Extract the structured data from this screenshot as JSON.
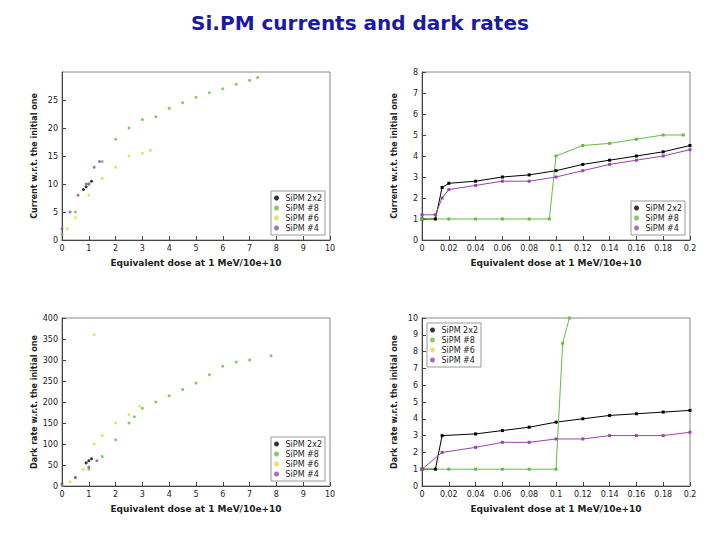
{
  "title": "Si.PM currents and dark rates",
  "chart_data": [
    {
      "type": "scatter",
      "marker": "circle",
      "y_label": "Current w.r.t. the initial one",
      "x_label": "Equivalent dose at 1 MeV/10e+10",
      "xlim": [
        0,
        10
      ],
      "xticks": [
        0,
        1,
        2,
        3,
        4,
        5,
        6,
        7,
        8,
        9,
        10
      ],
      "ylim": [
        0,
        30
      ],
      "yticks": [
        0,
        5,
        10,
        15,
        20,
        25
      ],
      "grid": false,
      "legend": "lower right",
      "series": [
        {
          "name": "SiPM 2x2",
          "color": "#000000",
          "x": [
            0.8,
            0.9,
            1.0,
            1.1
          ],
          "values": [
            9,
            9.5,
            10,
            10.5
          ]
        },
        {
          "name": "SiPM #8",
          "color": "#66bb44",
          "x": [
            0,
            0.5,
            1,
            1.5,
            2,
            2.5,
            3,
            3.5,
            4,
            4.5,
            5,
            5.5,
            6,
            6.5,
            7,
            7.3
          ],
          "values": [
            1,
            5,
            10,
            14,
            18,
            20,
            21.5,
            22,
            23.5,
            24.5,
            25.5,
            26.3,
            27,
            27.8,
            28.5,
            29
          ]
        },
        {
          "name": "SiPM #6",
          "color": "#dddd44",
          "x": [
            0.2,
            0.5,
            1,
            1.5,
            2,
            2.5,
            3,
            3.3
          ],
          "values": [
            2,
            4,
            8,
            11,
            13,
            15,
            15.5,
            16
          ]
        },
        {
          "name": "SiPM #4",
          "color": "#9944aa",
          "x": [
            0,
            0.3,
            0.6,
            0.9,
            1.2,
            1.4
          ],
          "values": [
            2,
            5,
            8,
            10,
            13,
            14
          ]
        }
      ]
    },
    {
      "type": "line",
      "marker": "square",
      "y_label": "Current w.r.t. the initial one",
      "x_label": "Equivalent dose at 1 MeV/10e+10",
      "xlim": [
        0,
        0.2
      ],
      "xticks": [
        0,
        0.02,
        0.04,
        0.06,
        0.08,
        0.1,
        0.12,
        0.14,
        0.16,
        0.18,
        0.2
      ],
      "ylim": [
        0,
        8
      ],
      "yticks": [
        0,
        1,
        2,
        3,
        4,
        5,
        6,
        7,
        8
      ],
      "grid": false,
      "legend": "lower right",
      "series": [
        {
          "name": "SiPM 2x2",
          "color": "#000000",
          "x": [
            0,
            0.01,
            0.015,
            0.02,
            0.04,
            0.06,
            0.08,
            0.1,
            0.12,
            0.14,
            0.16,
            0.18,
            0.2
          ],
          "values": [
            1,
            1,
            2.5,
            2.7,
            2.8,
            3,
            3.1,
            3.3,
            3.6,
            3.8,
            4,
            4.2,
            4.5
          ]
        },
        {
          "name": "SiPM #8",
          "color": "#66bb44",
          "x": [
            0,
            0.02,
            0.04,
            0.06,
            0.08,
            0.095,
            0.1,
            0.12,
            0.14,
            0.16,
            0.18,
            0.195
          ],
          "values": [
            1,
            1,
            1,
            1,
            1,
            1,
            4,
            4.5,
            4.6,
            4.8,
            5,
            5
          ]
        },
        {
          "name": "SiPM #4",
          "color": "#9944aa",
          "x": [
            0,
            0.01,
            0.015,
            0.02,
            0.04,
            0.06,
            0.08,
            0.1,
            0.12,
            0.14,
            0.16,
            0.18,
            0.2
          ],
          "values": [
            1.2,
            1.2,
            2,
            2.4,
            2.6,
            2.8,
            2.8,
            3,
            3.3,
            3.6,
            3.8,
            4,
            4.3
          ]
        }
      ]
    },
    {
      "type": "scatter",
      "marker": "circle",
      "y_label": "Dark rate w.r.t. the initial one",
      "x_label": "Equivalent dose at 1 MeV/10e+10",
      "xlim": [
        0,
        10
      ],
      "xticks": [
        0,
        1,
        2,
        3,
        4,
        5,
        6,
        7,
        8,
        9,
        10
      ],
      "ylim": [
        0,
        400
      ],
      "yticks": [
        0,
        50,
        100,
        150,
        200,
        250,
        300,
        350,
        400
      ],
      "grid": false,
      "legend": "lower right",
      "series": [
        {
          "name": "SiPM 2x2",
          "color": "#000000",
          "x": [
            0.9,
            1.0,
            1.1
          ],
          "values": [
            55,
            60,
            65
          ]
        },
        {
          "name": "SiPM #8",
          "color": "#66bb44",
          "x": [
            0,
            0.5,
            1,
            1.5,
            2,
            2.5,
            2.7,
            3,
            3.5,
            4,
            4.5,
            5,
            5.5,
            6,
            6.5,
            7,
            7.8
          ],
          "values": [
            1,
            20,
            40,
            70,
            110,
            150,
            165,
            185,
            200,
            215,
            230,
            245,
            265,
            285,
            295,
            300,
            310
          ]
        },
        {
          "name": "SiPM #6",
          "color": "#dddd44",
          "x": [
            0.3,
            0.8,
            1.2,
            1.2,
            1.5,
            2,
            2.5,
            2.9
          ],
          "values": [
            10,
            40,
            100,
            360,
            120,
            150,
            170,
            190
          ]
        },
        {
          "name": "SiPM #4",
          "color": "#9944aa",
          "x": [
            0,
            0.5,
            1,
            1.3
          ],
          "values": [
            5,
            20,
            45,
            60
          ]
        }
      ]
    },
    {
      "type": "line",
      "marker": "square",
      "y_label": "Dark rate w.r.t. the initial one",
      "x_label": "Equivalent dose at 1 MeV/10e+10",
      "xlim": [
        0,
        0.2
      ],
      "xticks": [
        0,
        0.02,
        0.04,
        0.06,
        0.08,
        0.1,
        0.12,
        0.14,
        0.16,
        0.18,
        0.2
      ],
      "ylim": [
        0,
        10
      ],
      "yticks": [
        0,
        1,
        2,
        3,
        4,
        5,
        6,
        7,
        8,
        9,
        10
      ],
      "grid": false,
      "legend": "upper left",
      "series": [
        {
          "name": "SiPM 2x2",
          "color": "#000000",
          "x": [
            0,
            0.01,
            0.015,
            0.04,
            0.06,
            0.08,
            0.1,
            0.12,
            0.14,
            0.16,
            0.18,
            0.2
          ],
          "values": [
            1,
            1,
            3,
            3.1,
            3.3,
            3.5,
            3.8,
            4,
            4.2,
            4.3,
            4.4,
            4.5
          ]
        },
        {
          "name": "SiPM #8",
          "color": "#66bb44",
          "x": [
            0,
            0.02,
            0.04,
            0.06,
            0.08,
            0.1,
            0.105,
            0.11
          ],
          "values": [
            1,
            1,
            1,
            1,
            1,
            1,
            8.5,
            10
          ]
        },
        {
          "name": "SiPM #6",
          "color": "#dddd44",
          "x": [],
          "values": []
        },
        {
          "name": "SiPM #4",
          "color": "#9944aa",
          "x": [
            0,
            0.015,
            0.04,
            0.06,
            0.08,
            0.1,
            0.12,
            0.14,
            0.16,
            0.18,
            0.2
          ],
          "values": [
            1,
            2,
            2.3,
            2.6,
            2.6,
            2.8,
            2.8,
            3,
            3,
            3,
            3.2
          ]
        }
      ]
    }
  ]
}
